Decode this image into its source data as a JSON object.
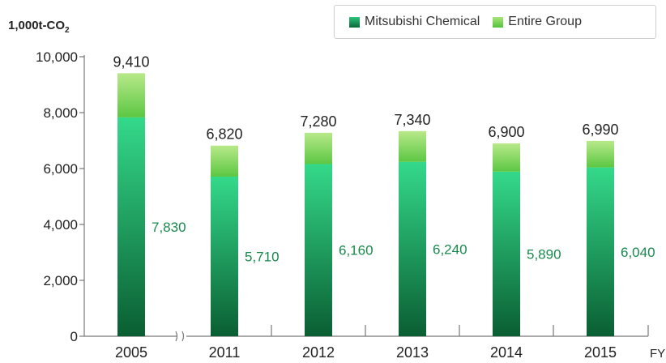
{
  "chart_data": {
    "type": "bar",
    "stacked": true,
    "ylabel": "1,000t-CO",
    "ylabel_subscript": "2",
    "xlabel": "FY",
    "ylim": [
      0,
      10000
    ],
    "yticks": [
      "0",
      "2,000",
      "4,000",
      "6,000",
      "8,000",
      "10,000"
    ],
    "ytick_values": [
      0,
      2000,
      4000,
      6000,
      8000,
      10000
    ],
    "categories": [
      "2005",
      "2011",
      "2012",
      "2013",
      "2014",
      "2015"
    ],
    "series": [
      {
        "name": "Mitsubishi Chemical",
        "values": [
          7830,
          5710,
          6160,
          6240,
          5890,
          6040
        ],
        "labels": [
          "7,830",
          "5,710",
          "6,160",
          "6,240",
          "5,890",
          "6,040"
        ],
        "color": "#1a9e5c"
      },
      {
        "name": "Entire Group",
        "values": [
          1580,
          1110,
          1120,
          1100,
          1010,
          950
        ],
        "color": "#6cc24a"
      }
    ],
    "totals": [
      9410,
      6820,
      7280,
      7340,
      6900,
      6990
    ],
    "total_labels": [
      "9,410",
      "6,820",
      "7,280",
      "7,340",
      "6,900",
      "6,990"
    ],
    "axis_break_after": "2005",
    "legend_position": "top-right",
    "grid": false
  }
}
